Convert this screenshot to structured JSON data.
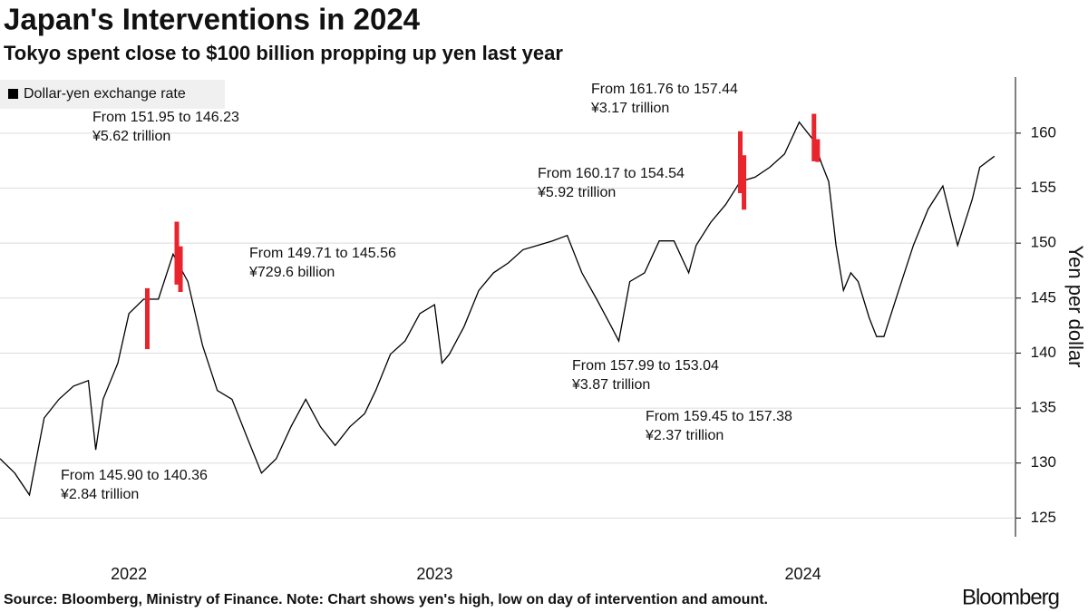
{
  "chart_data": {
    "type": "line",
    "title": "Japan's Interventions in 2024",
    "subtitle": "Tokyo spent close to $100 billion propping up yen last year",
    "ylabel": "Yen per dollar",
    "source": "Source: Bloomberg, Ministry of Finance. Note: Chart shows yen's high, low on day of intervention and amount.",
    "logo": "Bloomberg",
    "x": [
      2022.32,
      2022.36,
      2022.4,
      2022.44,
      2022.48,
      2022.52,
      2022.56,
      2022.58,
      2022.6,
      2022.64,
      2022.67,
      2022.71,
      2022.75,
      2022.79,
      2022.83,
      2022.87,
      2022.91,
      2022.95,
      2022.99,
      2023.03,
      2023.07,
      2023.11,
      2023.15,
      2023.19,
      2023.23,
      2023.27,
      2023.31,
      2023.34,
      2023.38,
      2023.42,
      2023.46,
      2023.5,
      2023.52,
      2023.54,
      2023.58,
      2023.62,
      2023.66,
      2023.7,
      2023.74,
      2023.78,
      2023.82,
      2023.86,
      2023.9,
      2023.94,
      2023.98,
      2024.0,
      2024.03,
      2024.07,
      2024.11,
      2024.15,
      2024.19,
      2024.21,
      2024.25,
      2024.29,
      2024.33,
      2024.37,
      2024.41,
      2024.45,
      2024.49,
      2024.53,
      2024.55,
      2024.57,
      2024.59,
      2024.61,
      2024.63,
      2024.65,
      2024.68,
      2024.7,
      2024.72,
      2024.76,
      2024.8,
      2024.84,
      2024.88,
      2024.92,
      2024.96,
      2024.98,
      2025.02
    ],
    "series": [
      {
        "name": "Dollar-yen exchange rate",
        "color": "#000000",
        "values": [
          130.4,
          129.1,
          127.1,
          134.1,
          135.8,
          137.0,
          137.5,
          131.2,
          135.8,
          139.1,
          143.6,
          144.9,
          144.9,
          149.0,
          146.5,
          140.7,
          136.6,
          135.8,
          132.4,
          129.1,
          130.4,
          133.3,
          135.8,
          133.3,
          131.6,
          133.3,
          134.5,
          136.6,
          139.9,
          141.1,
          143.6,
          144.4,
          139.1,
          139.9,
          142.4,
          145.7,
          147.3,
          148.2,
          149.4,
          149.8,
          150.2,
          150.7,
          147.3,
          144.9,
          142.4,
          141.1,
          146.5,
          147.3,
          150.2,
          150.2,
          147.3,
          149.8,
          151.9,
          153.5,
          155.6,
          156.0,
          156.9,
          158.1,
          161.0,
          159.3,
          157.3,
          155.6,
          149.8,
          145.7,
          147.3,
          146.5,
          143.2,
          141.5,
          141.5,
          145.7,
          149.8,
          153.1,
          155.2,
          149.8,
          154.0,
          156.9,
          157.9
        ]
      }
    ],
    "interventions": [
      {
        "x": 2022.72,
        "high": 145.9,
        "low": 140.36,
        "label": "From 145.90 to 140.36",
        "amount": "¥2.84 trillion"
      },
      {
        "x": 2022.8,
        "high": 151.95,
        "low": 146.23,
        "label": "From 151.95 to 146.23",
        "amount": "¥5.62 trillion"
      },
      {
        "x": 2022.81,
        "high": 149.71,
        "low": 145.56,
        "label": "From 149.71 to 145.56",
        "amount": "¥729.6 billion"
      },
      {
        "x": 2024.33,
        "high": 160.17,
        "low": 154.54,
        "label": "From 160.17 to 154.54",
        "amount": "¥5.92 trillion"
      },
      {
        "x": 2024.34,
        "high": 157.99,
        "low": 153.04,
        "label": "From 157.99 to 153.04",
        "amount": "¥3.87 trillion"
      },
      {
        "x": 2024.53,
        "high": 161.76,
        "low": 157.44,
        "label": "From 161.76 to 157.44",
        "amount": "¥3.17 trillion"
      },
      {
        "x": 2024.54,
        "high": 159.45,
        "low": 157.38,
        "label": "From 159.45 to 157.38",
        "amount": "¥2.37 trillion"
      }
    ],
    "intervention_color": "#e8242c",
    "xlim": [
      2022.32,
      2025.05
    ],
    "xticks": [
      {
        "value": 2022.67,
        "label": "2022"
      },
      {
        "value": 2023.5,
        "label": "2023"
      },
      {
        "value": 2024.5,
        "label": "2024"
      }
    ],
    "ylim": [
      123.3,
      165.1
    ],
    "yticks": [
      125,
      130,
      135,
      140,
      145,
      150,
      155,
      160
    ],
    "grid": true
  }
}
